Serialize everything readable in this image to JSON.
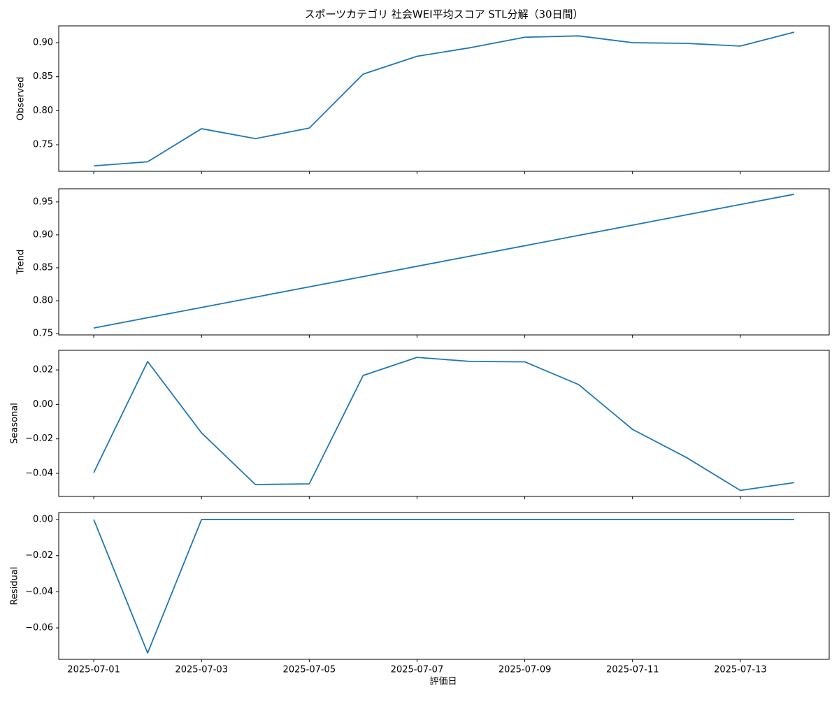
{
  "title": "スポーツカテゴリ 社会WEI平均スコア STL分解（30日間）",
  "xlabel": "評価日",
  "chart_data": [
    {
      "type": "line",
      "ylabel": "Observed",
      "x": [
        "2025-07-01",
        "2025-07-02",
        "2025-07-03",
        "2025-07-04",
        "2025-07-05",
        "2025-07-06",
        "2025-07-07",
        "2025-07-08",
        "2025-07-09",
        "2025-07-10",
        "2025-07-11",
        "2025-07-12",
        "2025-07-13",
        "2025-07-14"
      ],
      "series": [
        {
          "color": "#1f77b4",
          "values": [
            0.719,
            0.725,
            0.7736,
            0.759,
            0.7746,
            0.8538,
            0.88,
            0.8928,
            0.908,
            0.91,
            0.9,
            0.899,
            0.895,
            0.9154
          ]
        }
      ],
      "xlim": [
        "2025-06-30T08:24",
        "2025-07-14T15:36"
      ],
      "xticks": [
        "2025-07-01",
        "2025-07-03",
        "2025-07-05",
        "2025-07-07",
        "2025-07-09",
        "2025-07-11",
        "2025-07-13"
      ],
      "ylim": [
        0.711,
        0.9247
      ],
      "yticks": [
        {
          "value": 0.75,
          "label": "0.75"
        },
        {
          "value": 0.8,
          "label": "0.80"
        },
        {
          "value": 0.85,
          "label": "0.85"
        },
        {
          "value": 0.9,
          "label": "0.90"
        }
      ]
    },
    {
      "type": "line",
      "ylabel": "Trend",
      "x": [
        "2025-07-01",
        "2025-07-02",
        "2025-07-03",
        "2025-07-04",
        "2025-07-05",
        "2025-07-06",
        "2025-07-07",
        "2025-07-08",
        "2025-07-09",
        "2025-07-10",
        "2025-07-11",
        "2025-07-12",
        "2025-07-13",
        "2025-07-14"
      ],
      "series": [
        {
          "color": "#1f77b4",
          "values": [
            0.7585,
            0.7741,
            0.7897,
            0.8054,
            0.821,
            0.8366,
            0.8523,
            0.8679,
            0.8835,
            0.8992,
            0.9148,
            0.9304,
            0.9461,
            0.9617
          ]
        }
      ],
      "xlim": [
        "2025-06-30T08:24",
        "2025-07-14T15:36"
      ],
      "xticks": [
        "2025-07-01",
        "2025-07-03",
        "2025-07-05",
        "2025-07-07",
        "2025-07-09",
        "2025-07-11",
        "2025-07-13"
      ],
      "ylim": [
        0.748,
        0.97
      ],
      "yticks": [
        0.75,
        {
          "value": 0.8,
          "label": "0.80"
        },
        0.85,
        {
          "value": 0.9,
          "label": "0.90"
        },
        0.95
      ]
    },
    {
      "type": "line",
      "ylabel": "Seasonal",
      "x": [
        "2025-07-01",
        "2025-07-02",
        "2025-07-03",
        "2025-07-04",
        "2025-07-05",
        "2025-07-06",
        "2025-07-07",
        "2025-07-08",
        "2025-07-09",
        "2025-07-10",
        "2025-07-11",
        "2025-07-12",
        "2025-07-13",
        "2025-07-14"
      ],
      "series": [
        {
          "color": "#1f77b4",
          "values": [
            -0.0396,
            0.0249,
            -0.0165,
            -0.0465,
            -0.0461,
            0.0168,
            0.0273,
            0.0249,
            0.0247,
            0.0115,
            -0.0145,
            -0.0308,
            -0.0499,
            -0.0454
          ]
        }
      ],
      "xlim": [
        "2025-06-30T08:24",
        "2025-07-14T15:36"
      ],
      "xticks": [
        "2025-07-01",
        "2025-07-03",
        "2025-07-05",
        "2025-07-07",
        "2025-07-09",
        "2025-07-11",
        "2025-07-13"
      ],
      "ylim": [
        -0.0534,
        0.0314
      ],
      "yticks": [
        {
          "value": -0.04,
          "label": "−0.04"
        },
        {
          "value": -0.02,
          "label": "−0.02"
        },
        {
          "value": 0,
          "label": "0.00"
        },
        0.02
      ]
    },
    {
      "type": "line",
      "ylabel": "Residual",
      "x": [
        "2025-07-01",
        "2025-07-02",
        "2025-07-03",
        "2025-07-04",
        "2025-07-05",
        "2025-07-06",
        "2025-07-07",
        "2025-07-08",
        "2025-07-09",
        "2025-07-10",
        "2025-07-11",
        "2025-07-12",
        "2025-07-13",
        "2025-07-14"
      ],
      "series": [
        {
          "color": "#1f77b4",
          "values": [
            0,
            -0.0739,
            0,
            0,
            0,
            0,
            0,
            0,
            0,
            0,
            0,
            0,
            0,
            0
          ]
        }
      ],
      "xlim": [
        "2025-06-30T08:24",
        "2025-07-14T15:36"
      ],
      "xticks": [
        "2025-07-01",
        "2025-07-03",
        "2025-07-05",
        "2025-07-07",
        "2025-07-09",
        "2025-07-11",
        "2025-07-13"
      ],
      "ylim": [
        -0.0774,
        0.0039
      ],
      "yticks": [
        {
          "value": -0.06,
          "label": "−0.06"
        },
        {
          "value": -0.04,
          "label": "−0.04"
        },
        {
          "value": -0.02,
          "label": "−0.02"
        },
        {
          "value": 0,
          "label": "0.00"
        }
      ]
    }
  ]
}
